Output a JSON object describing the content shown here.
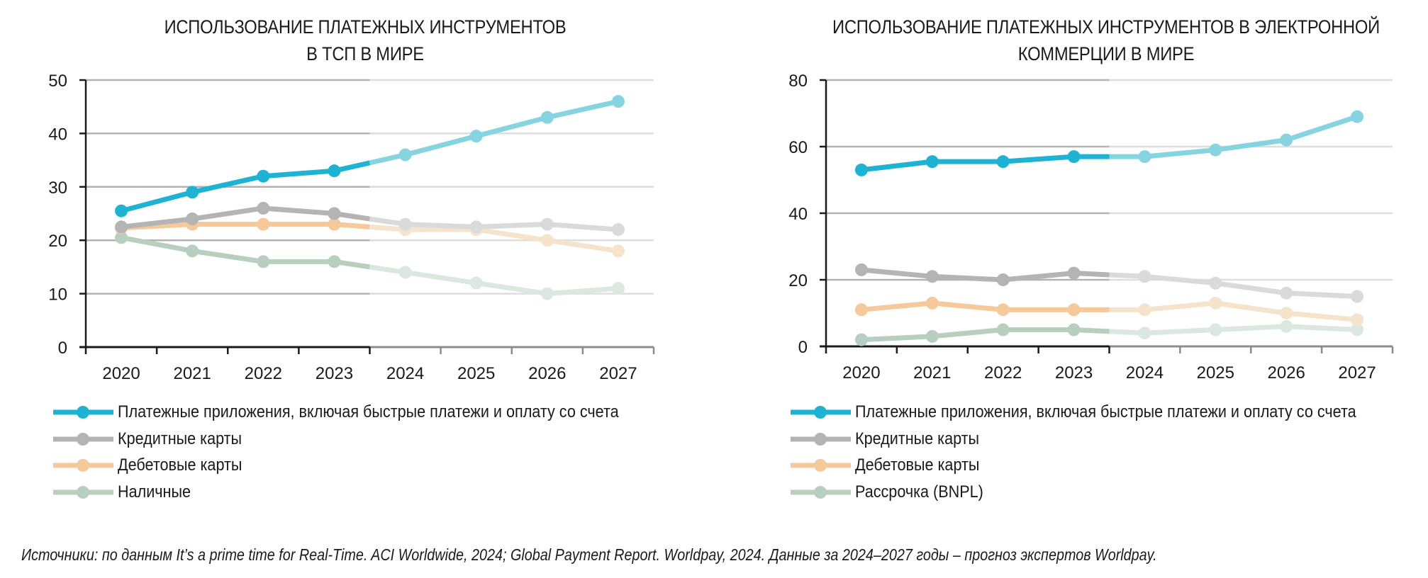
{
  "colors": {
    "apps": "#1fb3d3",
    "apps_forecast": "#87d4e1",
    "credit": "#b4b4b4",
    "credit_forecast": "#dadada",
    "debit": "#f6c99b",
    "debit_forecast": "#f5e3cc",
    "cash": "#b8cfc0",
    "cash_forecast": "#dce7e0",
    "grid": "#b3b3b3",
    "grid_forecast": "#dedede",
    "axis": "#1a1a1a",
    "axis_forecast": "#8c8c8c"
  },
  "chart_data": [
    {
      "type": "line",
      "title_lines": [
        "ИСПОЛЬЗОВАНИЕ ПЛАТЕЖНЫХ ИНСТРУМЕНТОВ",
        "В ТСП В МИРЕ"
      ],
      "xlabel": "",
      "ylabel": "",
      "categories": [
        "2020",
        "2021",
        "2022",
        "2023",
        "2024",
        "2025",
        "2026",
        "2027"
      ],
      "forecast_from": "2024",
      "ylim": [
        0,
        50
      ],
      "yticks": [
        0,
        10,
        20,
        30,
        40,
        50
      ],
      "grid": true,
      "legend_position": "bottom",
      "series": [
        {
          "key": "apps",
          "name": "Платежные приложения, включая быстрые платежи и оплату со счета",
          "values": [
            25.5,
            29,
            32,
            33,
            36,
            39.5,
            43,
            46
          ]
        },
        {
          "key": "credit",
          "name": "Кредитные карты",
          "values": [
            22.5,
            24,
            26,
            25,
            23,
            22.5,
            23,
            22
          ]
        },
        {
          "key": "debit",
          "name": "Дебетовые карты",
          "values": [
            22.3,
            23,
            23,
            23,
            22,
            22,
            20,
            18
          ]
        },
        {
          "key": "cash",
          "name": "Наличные",
          "values": [
            20.5,
            18,
            16,
            16,
            14,
            12,
            10,
            11
          ]
        }
      ]
    },
    {
      "type": "line",
      "title_lines": [
        "ИСПОЛЬЗОВАНИЕ ПЛАТЕЖНЫХ ИНСТРУМЕНТОВ В ЭЛЕКТРОННОЙ",
        "КОММЕРЦИИ В МИРЕ"
      ],
      "xlabel": "",
      "ylabel": "",
      "categories": [
        "2020",
        "2021",
        "2022",
        "2023",
        "2024",
        "2025",
        "2026",
        "2027"
      ],
      "forecast_from": "2024",
      "ylim": [
        0,
        80
      ],
      "yticks": [
        0,
        20,
        40,
        60,
        80
      ],
      "grid": true,
      "legend_position": "bottom",
      "series": [
        {
          "key": "apps",
          "name": "Платежные приложения, включая быстрые платежи и оплату со счета",
          "values": [
            53,
            55.5,
            55.5,
            57,
            57,
            59,
            62,
            69
          ]
        },
        {
          "key": "credit",
          "name": "Кредитные карты",
          "values": [
            23,
            21,
            20,
            22,
            21,
            19,
            16,
            15
          ]
        },
        {
          "key": "debit",
          "name": "Дебетовые карты",
          "values": [
            11,
            13,
            11,
            11,
            11,
            13,
            10,
            8
          ]
        },
        {
          "key": "cash",
          "name": "Рассрочка (BNPL)",
          "values": [
            2,
            3,
            5,
            5,
            4,
            5,
            6,
            5
          ]
        }
      ]
    }
  ],
  "source_note": "Источники: по данным It’s a prime time for Real-Time. ACI Worldwide, 2024; Global Payment Report. Worldpay, 2024. Данные за 2024–2027 годы – прогноз экспертов Worldpay."
}
